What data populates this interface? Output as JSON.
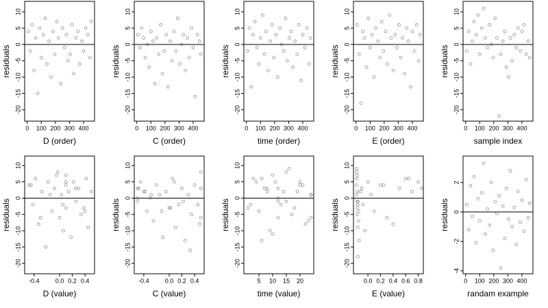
{
  "chart_data": [
    {
      "type": "scatter",
      "x_label": "D (order)",
      "y_label": "residuals",
      "color": "#444",
      "hline": 0,
      "xlim": [
        -18,
        478
      ],
      "xticks": [
        0,
        100,
        200,
        300,
        400
      ],
      "ylim": [
        -23.5,
        13.2
      ],
      "yticks": [
        -20,
        -15,
        -10,
        -5,
        0,
        5,
        10
      ],
      "x": [
        8,
        22,
        35,
        48,
        60,
        75,
        88,
        100,
        115,
        128,
        140,
        155,
        170,
        182,
        195,
        210,
        222,
        238,
        250,
        265,
        278,
        290,
        305,
        318,
        330,
        345,
        360,
        372,
        388,
        400,
        415,
        430,
        445,
        455
      ],
      "y": [
        4,
        -2,
        6,
        -8,
        2,
        -15,
        5,
        -4,
        3,
        8,
        -6,
        1,
        -10,
        4,
        -3,
        7,
        2,
        -12,
        5,
        -1,
        3,
        -5,
        -3,
        6,
        -9,
        2,
        4,
        -6,
        1,
        -2,
        5,
        3,
        -4,
        7
      ]
    },
    {
      "type": "scatter",
      "x_label": "C (order)",
      "y_label": "residuals",
      "color": "#444",
      "hline": 0,
      "xlim": [
        -18,
        478
      ],
      "xticks": [
        0,
        100,
        200,
        300,
        400
      ],
      "ylim": [
        -23.5,
        13.2
      ],
      "yticks": [
        -20,
        -15,
        -10,
        -5,
        0,
        5,
        10
      ],
      "x": [
        8,
        22,
        35,
        48,
        60,
        75,
        88,
        100,
        115,
        128,
        140,
        155,
        170,
        182,
        195,
        210,
        222,
        238,
        250,
        265,
        278,
        290,
        305,
        318,
        330,
        345,
        360,
        372,
        388,
        400,
        415,
        430,
        445,
        455
      ],
      "y": [
        3,
        -1,
        5,
        2,
        -4,
        0,
        -7,
        4,
        1,
        -12,
        2,
        -3,
        6,
        -9,
        -2,
        3,
        -13,
        1,
        -5,
        4,
        -2,
        8,
        -6,
        0,
        3,
        -8,
        2,
        -4,
        5,
        -1,
        -16,
        3,
        1,
        -3
      ]
    },
    {
      "type": "scatter",
      "x_label": "time (order)",
      "y_label": "residuals",
      "color": "#444",
      "hline": 0,
      "xlim": [
        -18,
        478
      ],
      "xticks": [
        0,
        100,
        200,
        300,
        400
      ],
      "ylim": [
        -23.5,
        13.2
      ],
      "yticks": [
        -20,
        -15,
        -10,
        -5,
        0,
        5,
        10
      ],
      "x": [
        8,
        22,
        35,
        48,
        60,
        75,
        88,
        100,
        115,
        128,
        140,
        155,
        170,
        182,
        195,
        210,
        222,
        238,
        250,
        265,
        278,
        290,
        305,
        318,
        330,
        345,
        360,
        372,
        388,
        400,
        415,
        430,
        445,
        455
      ],
      "y": [
        -2,
        5,
        -13,
        3,
        7,
        -1,
        -6,
        2,
        9,
        -3,
        4,
        -8,
        1,
        6,
        -4,
        3,
        -10,
        5,
        0,
        -2,
        8,
        -5,
        2,
        4,
        -7,
        1,
        -3,
        6,
        -11,
        3,
        -1,
        5,
        -6,
        2
      ]
    },
    {
      "type": "scatter",
      "x_label": "E (order)",
      "y_label": "residuals",
      "color": "#444",
      "hline": 0,
      "xlim": [
        -18,
        478
      ],
      "xticks": [
        0,
        100,
        200,
        300,
        400
      ],
      "ylim": [
        -23.5,
        13.2
      ],
      "yticks": [
        -20,
        -15,
        -10,
        -5,
        0,
        5,
        10
      ],
      "x": [
        8,
        22,
        35,
        48,
        60,
        75,
        88,
        100,
        115,
        128,
        140,
        155,
        170,
        182,
        195,
        210,
        222,
        238,
        250,
        265,
        278,
        290,
        305,
        318,
        330,
        345,
        360,
        372,
        388,
        400,
        415,
        430,
        445,
        455
      ],
      "y": [
        6,
        -3,
        -18,
        4,
        2,
        -7,
        8,
        -1,
        3,
        -10,
        5,
        1,
        -4,
        7,
        -2,
        4,
        -6,
        9,
        2,
        -8,
        3,
        -1,
        6,
        -4,
        2,
        -9,
        5,
        1,
        -13,
        4,
        -2,
        6,
        -5,
        3
      ]
    },
    {
      "type": "scatter",
      "x_label": "sample index",
      "y_label": "residuals",
      "color": "#444",
      "hline": 0,
      "xlim": [
        -18,
        478
      ],
      "xticks": [
        0,
        100,
        200,
        300,
        400
      ],
      "ylim": [
        -23.5,
        13.2
      ],
      "yticks": [
        -20,
        -15,
        -10,
        -5,
        0,
        5,
        10
      ],
      "x": [
        8,
        22,
        35,
        48,
        60,
        75,
        88,
        100,
        115,
        128,
        140,
        155,
        170,
        182,
        195,
        210,
        222,
        238,
        250,
        265,
        278,
        290,
        305,
        318,
        330,
        345,
        360,
        372,
        388,
        400,
        415,
        430,
        445,
        455
      ],
      "y": [
        -2,
        4,
        -6,
        1,
        7,
        3,
        9,
        -3,
        5,
        11,
        2,
        -1,
        6,
        0,
        -4,
        8,
        2,
        -22,
        -3,
        1,
        4,
        -7,
        -10,
        2,
        -5,
        3,
        -1,
        5,
        -2,
        4,
        6,
        -3,
        1,
        -4
      ]
    },
    {
      "type": "scatter",
      "x_label": "D (value)",
      "y_label": "residuals",
      "color": "#444",
      "hline": 0,
      "xlim": [
        -0.55,
        0.55
      ],
      "xticks": [
        -0.4,
        {
          "value": 0,
          "label": "0.0"
        },
        0.2,
        0.4
      ],
      "ylim": [
        -23.2,
        12.9
      ],
      "yticks": [
        -20,
        -15,
        -10,
        -5,
        0,
        5,
        10
      ],
      "x": [
        -0.48,
        -0.42,
        -0.38,
        -0.33,
        -0.28,
        -0.22,
        -0.18,
        -0.12,
        -0.08,
        -0.03,
        0.0,
        0.03,
        0.06,
        0.1,
        0.1,
        0.1,
        0.14,
        0.18,
        0.22,
        0.26,
        0.3,
        0.34,
        0.38,
        0.42,
        0.45,
        0.5,
        -0.45,
        -0.3,
        -0.15,
        0.05,
        0.1,
        0.25,
        0.4,
        -0.05
      ],
      "y": [
        4,
        -2,
        6,
        -8,
        2,
        -15,
        5,
        -4,
        3,
        8,
        -6,
        1,
        -10,
        4,
        -3,
        7,
        2,
        -12,
        5,
        -1,
        3,
        -5,
        -3,
        6,
        -9,
        2,
        4,
        -6,
        1,
        -2,
        5,
        3,
        -4,
        7
      ]
    },
    {
      "type": "scatter",
      "x_label": "C (value)",
      "y_label": "residuals",
      "color": "#444",
      "hline": 0,
      "xlim": [
        -0.55,
        0.55
      ],
      "xticks": [
        -0.4,
        {
          "value": 0,
          "label": "0.0"
        },
        0.2,
        0.4
      ],
      "ylim": [
        -23.2,
        12.9
      ],
      "yticks": [
        -20,
        -15,
        -10,
        -5,
        0,
        5,
        10
      ],
      "x": [
        -0.5,
        -0.5,
        -0.45,
        -0.4,
        -0.35,
        -0.3,
        -0.25,
        -0.2,
        -0.15,
        -0.1,
        -0.05,
        0.0,
        0.05,
        0.1,
        0.15,
        0.2,
        0.25,
        0.3,
        0.35,
        0.4,
        0.45,
        0.5,
        0.5,
        -0.5,
        -0.48,
        0.48,
        -0.38,
        -0.12,
        0.08,
        0.22,
        0.33,
        0.5,
        -0.28,
        0.02
      ],
      "y": [
        3,
        -1,
        5,
        2,
        -4,
        0,
        -7,
        4,
        1,
        -12,
        2,
        -3,
        6,
        -9,
        -2,
        3,
        -13,
        1,
        -5,
        4,
        -2,
        8,
        -6,
        0,
        3,
        -8,
        2,
        -4,
        5,
        -1,
        -16,
        3,
        1,
        -3
      ]
    },
    {
      "type": "scatter",
      "x_label": "time (value)",
      "y_label": "residuals",
      "color": "#444",
      "hline": 0,
      "xlim": [
        -0.5,
        25
      ],
      "xticks": [
        5,
        10,
        15,
        20
      ],
      "ylim": [
        -23.2,
        12.9
      ],
      "yticks": [
        -20,
        -15,
        -10,
        -5,
        0,
        5,
        10
      ],
      "x": [
        2,
        4,
        6,
        8,
        10,
        12,
        12,
        14,
        16,
        18,
        20,
        22,
        24,
        3,
        5,
        7,
        9,
        11,
        12,
        13,
        15,
        17,
        19,
        21,
        23,
        24,
        1,
        6,
        10,
        12,
        15,
        20,
        24,
        8
      ],
      "y": [
        -2,
        5,
        -13,
        3,
        7,
        -1,
        -6,
        2,
        9,
        -3,
        4,
        -8,
        1,
        6,
        -4,
        3,
        -10,
        5,
        0,
        -2,
        8,
        -5,
        2,
        4,
        -7,
        1,
        -3,
        6,
        -11,
        3,
        -1,
        5,
        -6,
        2
      ]
    },
    {
      "type": "scatter",
      "x_label": "E (value)",
      "y_label": "residuals",
      "color": "#444",
      "hline": 0,
      "xlim": [
        -0.23,
        0.88
      ],
      "xticks": [
        {
          "value": 0,
          "label": "0.0"
        },
        0.2,
        0.4,
        0.6,
        0.8
      ],
      "ylim": [
        -23.2,
        12.9
      ],
      "yticks": [
        -20,
        -15,
        -10,
        -5,
        0,
        5,
        10
      ],
      "x": [
        -0.18,
        -0.17,
        -0.16,
        -0.18,
        -0.17,
        -0.15,
        -0.18,
        -0.16,
        -0.1,
        -0.05,
        0.0,
        0.05,
        0.1,
        -0.17,
        -0.16,
        0.2,
        0.3,
        -0.18,
        -0.12,
        0.4,
        0.5,
        -0.17,
        0.6,
        -0.15,
        0.7,
        -0.16,
        0.8,
        -0.18,
        -0.14,
        0.25,
        -0.08,
        0.65,
        -0.17,
        0.85
      ],
      "y": [
        6,
        -3,
        -18,
        4,
        2,
        -7,
        8,
        -1,
        3,
        -10,
        5,
        1,
        -4,
        7,
        -2,
        4,
        -6,
        9,
        2,
        -8,
        3,
        -1,
        6,
        -4,
        2,
        -9,
        5,
        1,
        -13,
        4,
        -2,
        6,
        -5,
        3
      ]
    },
    {
      "type": "scatter",
      "x_label": "randam example",
      "y_label": "residuals",
      "color": "#444",
      "hline": 0,
      "xlim": [
        -18,
        478
      ],
      "xticks": [
        0,
        100,
        200,
        300,
        400
      ],
      "ylim": [
        -4.2,
        3.8
      ],
      "yticks": [
        -4,
        -2,
        0,
        2
      ],
      "x": [
        8,
        22,
        35,
        48,
        60,
        75,
        88,
        100,
        115,
        128,
        140,
        155,
        170,
        182,
        195,
        210,
        222,
        238,
        250,
        265,
        278,
        290,
        305,
        318,
        330,
        345,
        360,
        372,
        388,
        400,
        415,
        430,
        445,
        455
      ],
      "y": [
        0.5,
        -1.2,
        1.8,
        -0.3,
        2.4,
        -2.1,
        0.9,
        -0.6,
        1.3,
        3.3,
        -1.5,
        0.2,
        -0.9,
        2.0,
        -2.6,
        0.7,
        -0.1,
        1.1,
        -3.8,
        0.4,
        -1.8,
        1.6,
        -0.5,
        2.8,
        -1.0,
        0.3,
        -2.2,
        1.4,
        -0.7,
        0.8,
        -1.3,
        2.2,
        -0.4,
        0.6
      ]
    }
  ]
}
